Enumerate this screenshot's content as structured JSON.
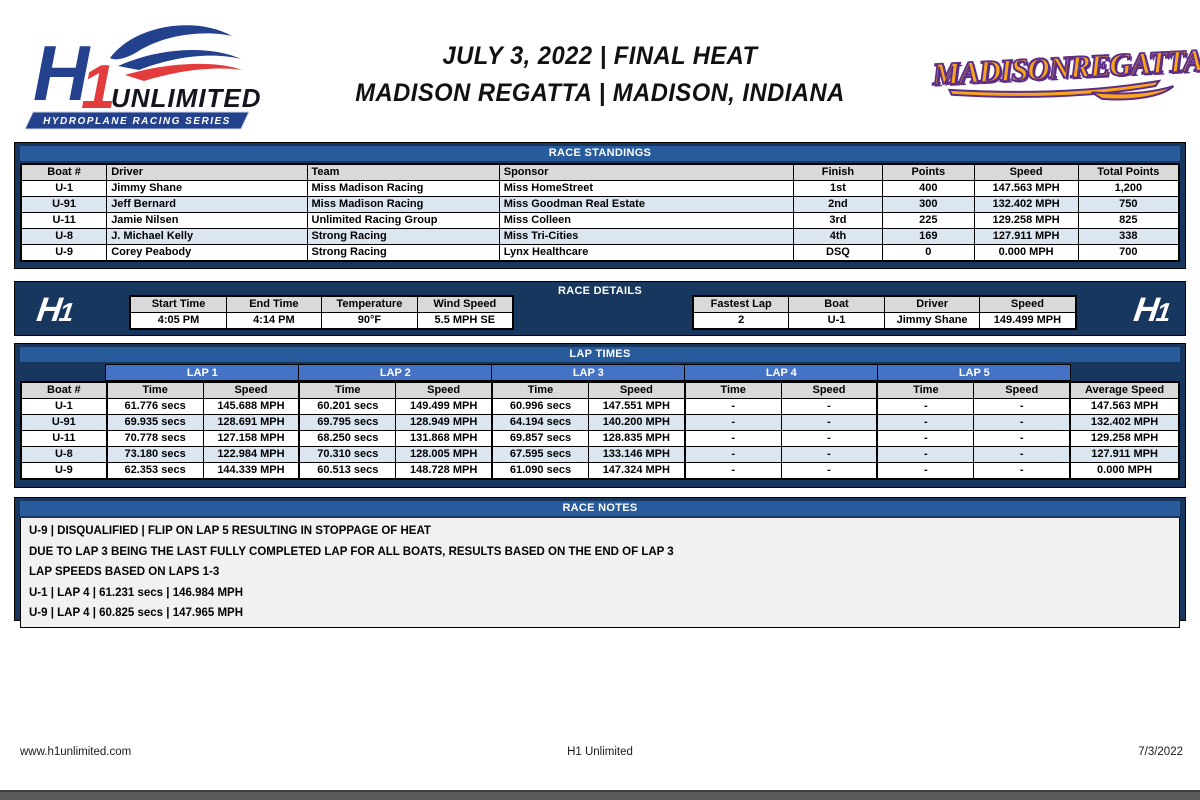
{
  "header": {
    "title_line1": "JULY 3, 2022 | FINAL HEAT",
    "title_line2": "MADISON REGATTA | MADISON, INDIANA"
  },
  "logos": {
    "h1_main": {
      "h": "H",
      "one": "1",
      "unlimited": "UNLIMITED",
      "tagline": "HYDROPLANE RACING SERIES"
    },
    "madison": {
      "word1": "MADISON",
      "word2": "REGATTA"
    },
    "h1_mark": {
      "h": "H",
      "one": "1"
    }
  },
  "race_standings": {
    "title": "RACE STANDINGS",
    "columns": [
      "Boat #",
      "Driver",
      "Team",
      "Sponsor",
      "Finish",
      "Points",
      "Speed",
      "Total Points"
    ],
    "rows": [
      [
        "U-1",
        "Jimmy Shane",
        "Miss Madison Racing",
        "Miss HomeStreet",
        "1st",
        "400",
        "147.563 MPH",
        "1,200"
      ],
      [
        "U-91",
        "Jeff Bernard",
        "Miss Madison Racing",
        "Miss Goodman Real Estate",
        "2nd",
        "300",
        "132.402 MPH",
        "750"
      ],
      [
        "U-11",
        "Jamie Nilsen",
        "Unlimited Racing Group",
        "Miss Colleen",
        "3rd",
        "225",
        "129.258 MPH",
        "825"
      ],
      [
        "U-8",
        "J. Michael Kelly",
        "Strong Racing",
        "Miss Tri-Cities",
        "4th",
        "169",
        "127.911 MPH",
        "338"
      ],
      [
        "U-9",
        "Corey Peabody",
        "Strong Racing",
        "Lynx Healthcare",
        "DSQ",
        "0",
        "0.000 MPH",
        "700"
      ]
    ]
  },
  "race_details": {
    "title": "RACE DETAILS",
    "left": {
      "columns": [
        "Start Time",
        "End Time",
        "Temperature",
        "Wind Speed"
      ],
      "values": [
        "4:05 PM",
        "4:14 PM",
        "90°F",
        "5.5 MPH SE"
      ]
    },
    "right": {
      "columns": [
        "Fastest Lap",
        "Boat",
        "Driver",
        "Speed"
      ],
      "values": [
        "2",
        "U-1",
        "Jimmy Shane",
        "149.499 MPH"
      ]
    }
  },
  "lap_times": {
    "title": "LAP TIMES",
    "lap_headers": [
      "LAP 1",
      "LAP 2",
      "LAP 3",
      "LAP 4",
      "LAP 5"
    ],
    "columns": {
      "boat": "Boat #",
      "time": "Time",
      "speed": "Speed",
      "average": "Average Speed"
    },
    "rows": [
      {
        "boat": "U-1",
        "laps": [
          [
            "61.776 secs",
            "145.688 MPH"
          ],
          [
            "60.201 secs",
            "149.499 MPH"
          ],
          [
            "60.996 secs",
            "147.551 MPH"
          ],
          [
            "-",
            "-"
          ],
          [
            "-",
            "-"
          ]
        ],
        "average": "147.563 MPH"
      },
      {
        "boat": "U-91",
        "laps": [
          [
            "69.935 secs",
            "128.691 MPH"
          ],
          [
            "69.795 secs",
            "128.949 MPH"
          ],
          [
            "64.194 secs",
            "140.200 MPH"
          ],
          [
            "-",
            "-"
          ],
          [
            "-",
            "-"
          ]
        ],
        "average": "132.402 MPH"
      },
      {
        "boat": "U-11",
        "laps": [
          [
            "70.778 secs",
            "127.158 MPH"
          ],
          [
            "68.250 secs",
            "131.868 MPH"
          ],
          [
            "69.857 secs",
            "128.835 MPH"
          ],
          [
            "-",
            "-"
          ],
          [
            "-",
            "-"
          ]
        ],
        "average": "129.258 MPH"
      },
      {
        "boat": "U-8",
        "laps": [
          [
            "73.180 secs",
            "122.984 MPH"
          ],
          [
            "70.310 secs",
            "128.005 MPH"
          ],
          [
            "67.595 secs",
            "133.146 MPH"
          ],
          [
            "-",
            "-"
          ],
          [
            "-",
            "-"
          ]
        ],
        "average": "127.911 MPH"
      },
      {
        "boat": "U-9",
        "laps": [
          [
            "62.353 secs",
            "144.339 MPH"
          ],
          [
            "60.513 secs",
            "148.728 MPH"
          ],
          [
            "61.090 secs",
            "147.324 MPH"
          ],
          [
            "-",
            "-"
          ],
          [
            "-",
            "-"
          ]
        ],
        "average": "0.000 MPH"
      }
    ]
  },
  "race_notes": {
    "title": "RACE NOTES",
    "lines": [
      "U-9 | DISQUALIFIED | FLIP ON LAP 5 RESULTING IN STOPPAGE OF HEAT",
      "DUE TO LAP 3 BEING THE LAST FULLY COMPLETED LAP FOR ALL BOATS, RESULTS BASED ON THE END OF LAP 3",
      "LAP SPEEDS BASED ON LAPS 1-3",
      "U-1 | LAP 4 | 61.231 secs | 146.984 MPH",
      "U-9 | LAP 4 | 60.825 secs | 147.965 MPH"
    ]
  },
  "footer": {
    "website": "www.h1unlimited.com",
    "center": "H1 Unlimited",
    "date": "7/3/2022"
  },
  "colors": {
    "frame_navy": "#17375E",
    "title_blue": "#275B9B",
    "lap_header_blue": "#4472C4",
    "row_alt_blue": "#DCE6F1",
    "header_gray": "#D9D9D9",
    "notes_bg": "#F1F1F1",
    "bottom_bar": "#595959",
    "logo_blue": "#24418E",
    "logo_red": "#E23C3C",
    "madison_orange": "#F9A51A",
    "madison_purple": "#5C2D87"
  }
}
